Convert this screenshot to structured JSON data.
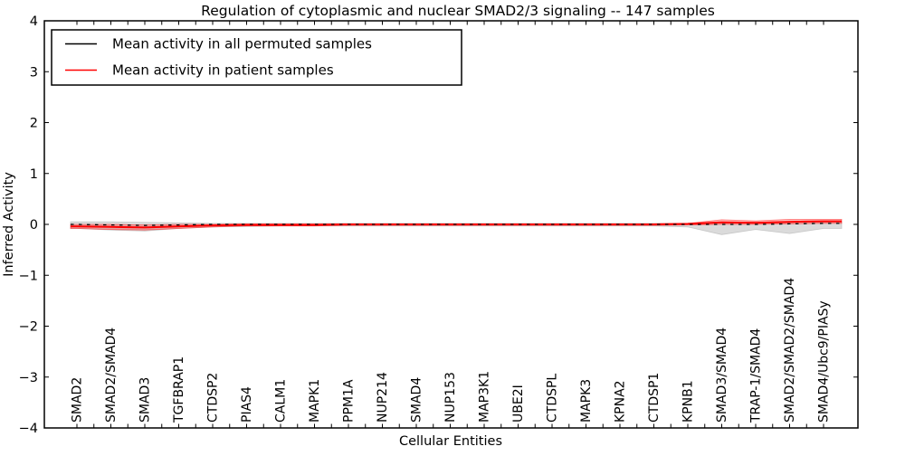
{
  "title": "Regulation of cytoplasmic and nuclear SMAD2/3 signaling -- 147 samples",
  "axes": {
    "x_label": "Cellular Entities",
    "y_label": "Inferred Activity",
    "y_tick_labels": [
      "4",
      "3",
      "2",
      "1",
      "0",
      "−1",
      "−2",
      "−3",
      "−4"
    ],
    "y_tick_values": [
      4,
      3,
      2,
      1,
      0,
      -1,
      -2,
      -3,
      -4
    ]
  },
  "legend": {
    "items": [
      {
        "label": "Mean activity in all permuted samples",
        "color": "#000000"
      },
      {
        "label": "Mean activity in patient samples",
        "color": "#ff0000"
      }
    ]
  },
  "chart_data": {
    "type": "line",
    "title": "Regulation of cytoplasmic and nuclear SMAD2/3 signaling -- 147 samples",
    "xlabel": "Cellular Entities",
    "ylabel": "Inferred Activity",
    "ylim": [
      -4,
      4
    ],
    "grid": false,
    "legend_position": "upper-left",
    "categories": [
      "SMAD2",
      "SMAD2/SMAD4",
      "SMAD3",
      "TGFBRAP1",
      "CTDSP2",
      "PIAS4",
      "CALM1",
      "MAPK1",
      "PPM1A",
      "NUP214",
      "SMAD4",
      "NUP153",
      "MAP3K1",
      "UBE2I",
      "CTDSPL",
      "MAPK3",
      "KPNA2",
      "CTDSP1",
      "KPNB1",
      "SMAD3/SMAD4",
      "TRAP-1/SMAD4",
      "SMAD2/SMAD2/SMAD4",
      "SMAD4/Ubc9/PIASy"
    ],
    "series": [
      {
        "name": "Mean activity in all permuted samples",
        "color": "#000000",
        "style": "dashed",
        "values": [
          0,
          -0.01,
          -0.02,
          -0.01,
          0,
          0,
          0,
          0,
          0,
          0,
          0,
          0,
          0,
          0,
          0,
          0,
          0,
          0,
          0,
          0,
          0,
          0.01,
          0.02
        ]
      },
      {
        "name": "Mean activity in patient samples",
        "color": "#ff0000",
        "style": "solid",
        "values": [
          -0.04,
          -0.05,
          -0.06,
          -0.04,
          -0.02,
          -0.01,
          -0.01,
          -0.01,
          0,
          0,
          0,
          0,
          0,
          0,
          0,
          0,
          0,
          0,
          0.01,
          0.04,
          0.03,
          0.05,
          0.06
        ]
      }
    ],
    "bands": [
      {
        "name": "permuted-samples-range",
        "color": "#bdbdbd",
        "opacity": 0.55,
        "upper": [
          0.05,
          0.05,
          0.04,
          0.03,
          0.02,
          0.02,
          0.02,
          0.02,
          0.02,
          0.02,
          0.02,
          0.02,
          0.02,
          0.02,
          0.02,
          0.02,
          0.02,
          0.02,
          0.02,
          0.03,
          0.03,
          0.04,
          0.06
        ],
        "lower": [
          -0.08,
          -0.11,
          -0.13,
          -0.08,
          -0.05,
          -0.04,
          -0.03,
          -0.03,
          -0.03,
          -0.03,
          -0.03,
          -0.03,
          -0.03,
          -0.03,
          -0.03,
          -0.03,
          -0.03,
          -0.03,
          -0.05,
          -0.2,
          -0.1,
          -0.18,
          -0.08
        ]
      },
      {
        "name": "patient-samples-range",
        "color": "#ff0000",
        "opacity": 0.25,
        "upper": [
          0.0,
          0.0,
          -0.01,
          0.0,
          0.0,
          0.01,
          0.01,
          0.01,
          0.01,
          0.01,
          0.01,
          0.01,
          0.01,
          0.01,
          0.01,
          0.01,
          0.01,
          0.01,
          0.02,
          0.09,
          0.07,
          0.1,
          0.1
        ],
        "lower": [
          -0.08,
          -0.1,
          -0.11,
          -0.08,
          -0.05,
          -0.03,
          -0.03,
          -0.03,
          -0.02,
          -0.02,
          -0.02,
          -0.02,
          -0.02,
          -0.02,
          -0.02,
          -0.02,
          -0.02,
          -0.02,
          -0.01,
          0.0,
          0.0,
          0.01,
          0.02
        ]
      }
    ]
  }
}
